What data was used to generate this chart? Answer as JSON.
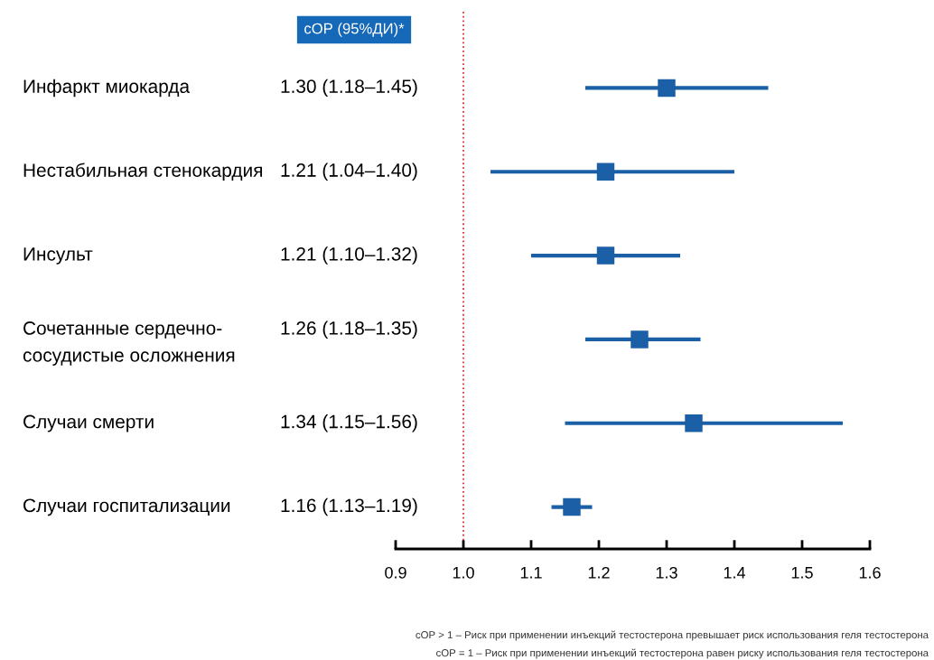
{
  "chart_data": {
    "type": "scatter",
    "orientation": "horizontal",
    "marker": "square",
    "categories": [
      "Инфаркт миокарда",
      "Нестабильная стенокардия",
      "Инсульт",
      "Сочетанные сердечно-\nсосудистые осложнения",
      "Случаи смерти",
      "Случаи госпитализации"
    ],
    "values": [
      1.3,
      1.21,
      1.21,
      1.26,
      1.34,
      1.16
    ],
    "errors": [
      [
        1.18,
        1.45
      ],
      [
        1.04,
        1.4
      ],
      [
        1.1,
        1.32
      ],
      [
        1.18,
        1.35
      ],
      [
        1.15,
        1.56
      ],
      [
        1.13,
        1.19
      ]
    ],
    "value_labels": [
      "1.30 (1.18–1.45)",
      "1.21 (1.04–1.40)",
      "1.21 (1.10–1.32)",
      "1.26 (1.18–1.35)",
      "1.34 (1.15–1.56)",
      "1.16 (1.13–1.19)"
    ],
    "color": "#1b5fa6",
    "xlim": [
      0.9,
      1.6
    ],
    "xticks": [
      {
        "value": 0.9,
        "label": "0.9"
      },
      {
        "value": 1.0,
        "label": "1.0"
      },
      {
        "value": 1.1,
        "label": "1.1"
      },
      {
        "value": 1.2,
        "label": "1.2"
      },
      {
        "value": 1.3,
        "label": "1.3"
      },
      {
        "value": 1.4,
        "label": "1.4"
      },
      {
        "value": 1.5,
        "label": "1.5"
      },
      {
        "value": 1.6,
        "label": "1.6"
      }
    ],
    "ref_lines": [
      {
        "axis": "x",
        "value": 1.0,
        "color": "#d9343a",
        "line_style": "dotted"
      }
    ],
    "grid": false,
    "annotations": [
      "сОР (95%ДИ)*",
      "сОР > 1 – Риск при применении инъекций тестостерона превышает риск использования геля тестостерона",
      "сОР = 1 – Риск при применении инъекций тестостерона равен риску использования геля тестостерона"
    ]
  }
}
